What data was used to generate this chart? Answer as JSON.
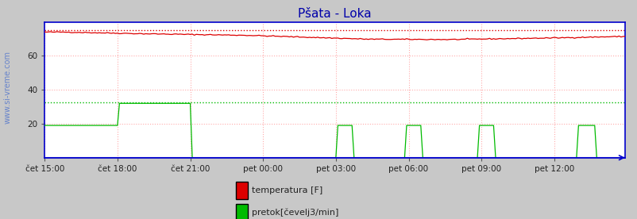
{
  "title": "Pšata - Loka",
  "title_color": "#0000aa",
  "bg_color": "#c8c8c8",
  "plot_bg_color": "#ffffff",
  "watermark": "www.si-vreme.com",
  "ylim": [
    0,
    80
  ],
  "yticks": [
    20,
    40,
    60
  ],
  "xlabel_labels": [
    "čet 15:00",
    "čet 18:00",
    "čet 21:00",
    "pet 00:00",
    "pet 03:00",
    "pet 06:00",
    "pet 09:00",
    "pet 12:00"
  ],
  "n_points": 288,
  "temp_color": "#dd0000",
  "flow_color": "#00bb00",
  "height_color": "#0000cc",
  "grid_color": "#ffaaaa",
  "temp_max_dotted": 75.0,
  "flow_max_dotted": 32.5,
  "legend_items": [
    "temperatura [F]",
    "pretok[čevelj3/min]"
  ],
  "legend_colors": [
    "#dd0000",
    "#00bb00"
  ],
  "tick_indices": [
    0,
    36,
    72,
    108,
    144,
    180,
    216,
    252
  ]
}
